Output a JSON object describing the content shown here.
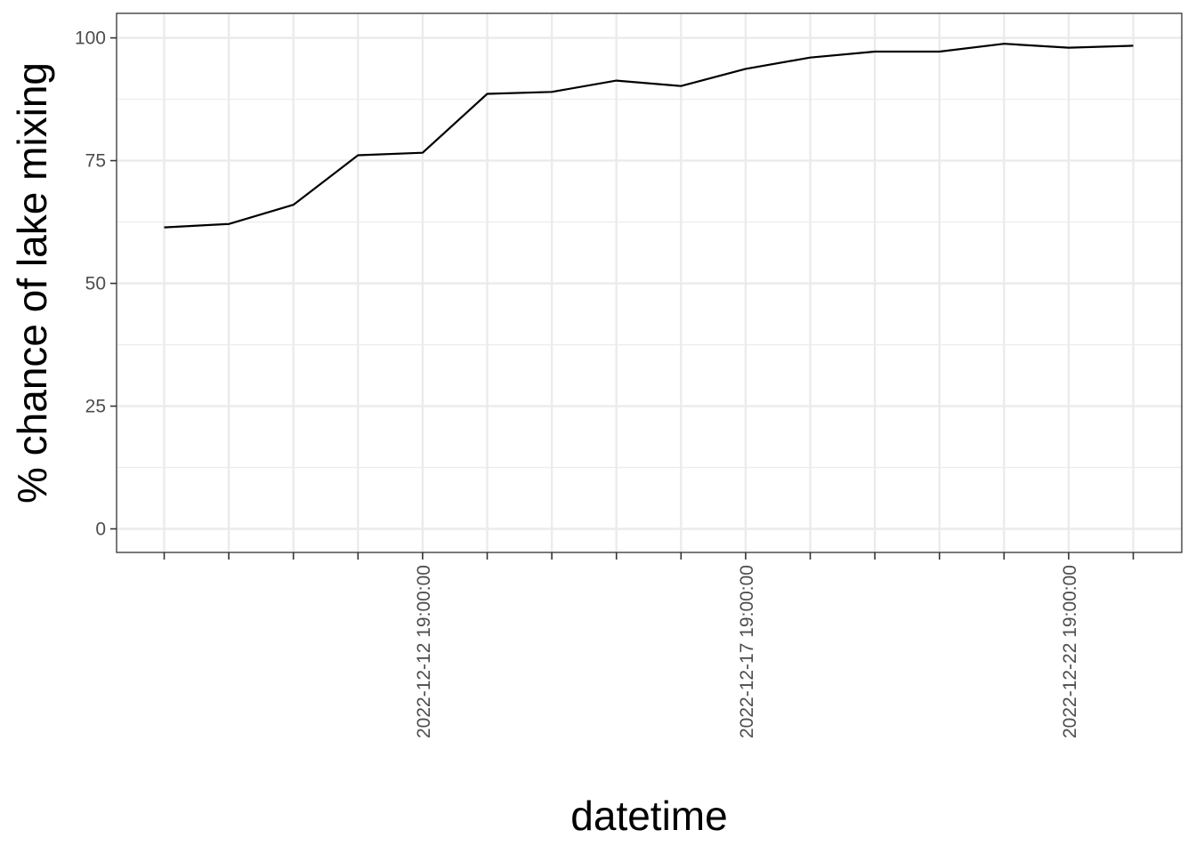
{
  "chart_data": {
    "type": "line",
    "title": "",
    "xlabel": "datetime",
    "ylabel": "% chance of lake mixing",
    "x": [
      "2022-12-08 19:00:00",
      "2022-12-09 19:00:00",
      "2022-12-10 19:00:00",
      "2022-12-11 19:00:00",
      "2022-12-12 19:00:00",
      "2022-12-13 19:00:00",
      "2022-12-14 19:00:00",
      "2022-12-15 19:00:00",
      "2022-12-16 19:00:00",
      "2022-12-17 19:00:00",
      "2022-12-18 19:00:00",
      "2022-12-19 19:00:00",
      "2022-12-20 19:00:00",
      "2022-12-21 19:00:00",
      "2022-12-22 19:00:00",
      "2022-12-23 19:00:00"
    ],
    "series": [
      {
        "values": [
          61.4,
          62.1,
          66.0,
          76.1,
          76.6,
          88.6,
          89.0,
          91.3,
          90.2,
          93.7,
          96.0,
          97.2,
          97.2,
          98.8,
          98.0,
          98.4
        ],
        "color": "#000000"
      }
    ],
    "x_tick_labels": [
      "2022-12-12 19:00:00",
      "2022-12-17 19:00:00",
      "2022-12-22 19:00:00"
    ],
    "x_tick_label_indices": [
      4,
      9,
      14
    ],
    "y_ticks": [
      0,
      25,
      50,
      75,
      100
    ],
    "y_tick_labels": [
      "0",
      "25",
      "50",
      "75",
      "100"
    ],
    "ylim": [
      -4.8,
      105
    ],
    "grid": true,
    "legend": "none",
    "colors": {
      "line": "#000000",
      "grid": "#ebebeb",
      "panel_border": "#333333",
      "tick_text": "#4d4d4d"
    }
  }
}
